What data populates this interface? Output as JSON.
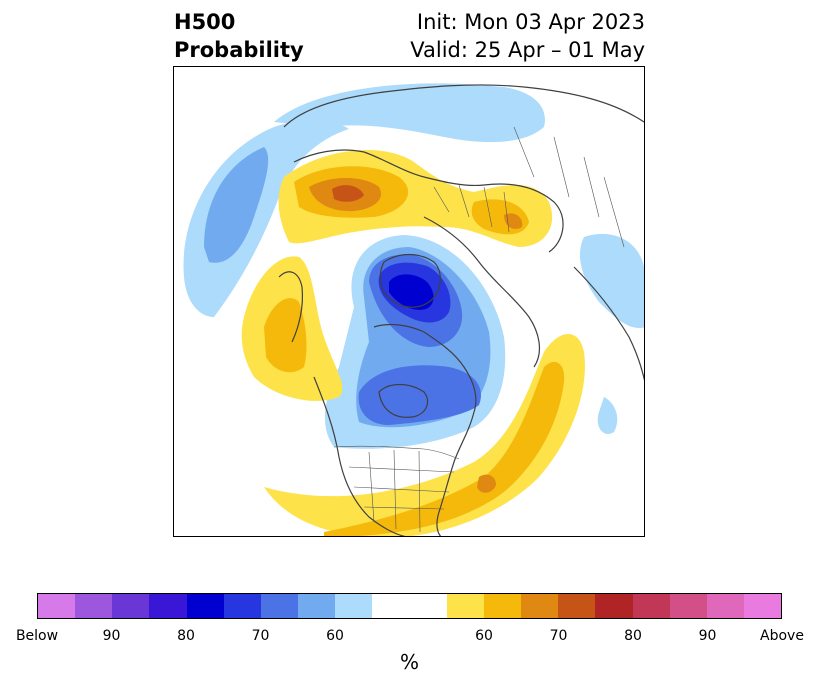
{
  "title": {
    "left_line1": "H500",
    "left_line2": "Probability",
    "right_line1": "Init: Mon 03 Apr 2023",
    "right_line2": "Valid: 25 Apr – 01 May"
  },
  "map": {
    "projection": "north-polar-stereographic",
    "features": [
      "coastlines",
      "country-borders",
      "state-borders"
    ],
    "anomalies": [
      {
        "region": "Arctic / Canadian Archipelago",
        "sign": "below",
        "peak_category": "80"
      },
      {
        "region": "Hudson Bay / central Canada",
        "sign": "below",
        "peak_category": "70"
      },
      {
        "region": "Northern Europe / Russia",
        "sign": "above",
        "peak_category": "70"
      },
      {
        "region": "North Atlantic",
        "sign": "above",
        "peak_category": "70"
      },
      {
        "region": "Northeast Pacific / Alaska",
        "sign": "above",
        "peak_category": "60"
      },
      {
        "region": "Northwest Pacific",
        "sign": "below",
        "peak_category": "60"
      },
      {
        "region": "Central Siberia",
        "sign": "above",
        "peak_category": "60"
      }
    ]
  },
  "colorbar": {
    "colors": [
      "#d57ae8",
      "#9c57de",
      "#6b36d6",
      "#3a17d6",
      "#0000d0",
      "#2736df",
      "#4b73e5",
      "#72aaf0",
      "#acdbfb",
      "#ffffff",
      "#ffffff",
      "#fde24a",
      "#f4b90b",
      "#df8812",
      "#c75417",
      "#b02426",
      "#c23656",
      "#d24f87",
      "#df68ba",
      "#e97ae0"
    ],
    "tick_labels": [
      "Below",
      "90",
      "80",
      "70",
      "60",
      "60",
      "70",
      "80",
      "90",
      "Above"
    ],
    "unit_label": "%"
  }
}
